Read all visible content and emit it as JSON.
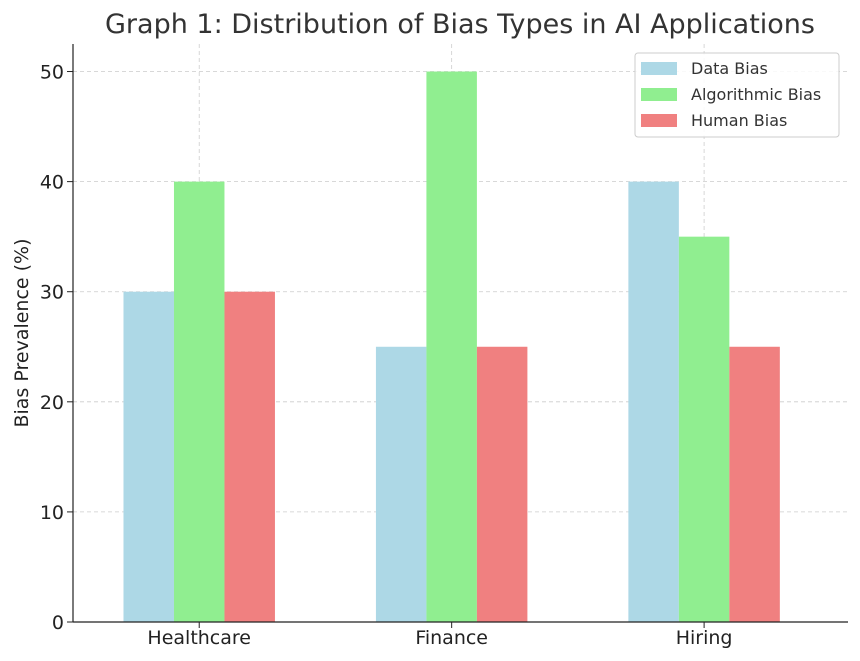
{
  "chart_data": {
    "type": "bar",
    "title": "Graph 1: Distribution of Bias Types in AI Applications",
    "xlabel": "",
    "ylabel": "Bias Prevalence (%)",
    "categories": [
      "Healthcare",
      "Finance",
      "Hiring"
    ],
    "series": [
      {
        "name": "Data Bias",
        "values": [
          30,
          25,
          40
        ],
        "color": "#add8e6"
      },
      {
        "name": "Algorithmic Bias",
        "values": [
          40,
          50,
          35
        ],
        "color": "#90ee90"
      },
      {
        "name": "Human Bias",
        "values": [
          30,
          25,
          25
        ],
        "color": "#f08080"
      }
    ],
    "ylim": [
      0,
      52.5
    ],
    "yticks": [
      0,
      10,
      20,
      30,
      40,
      50
    ],
    "grid": true,
    "legend_position": "top-right"
  }
}
